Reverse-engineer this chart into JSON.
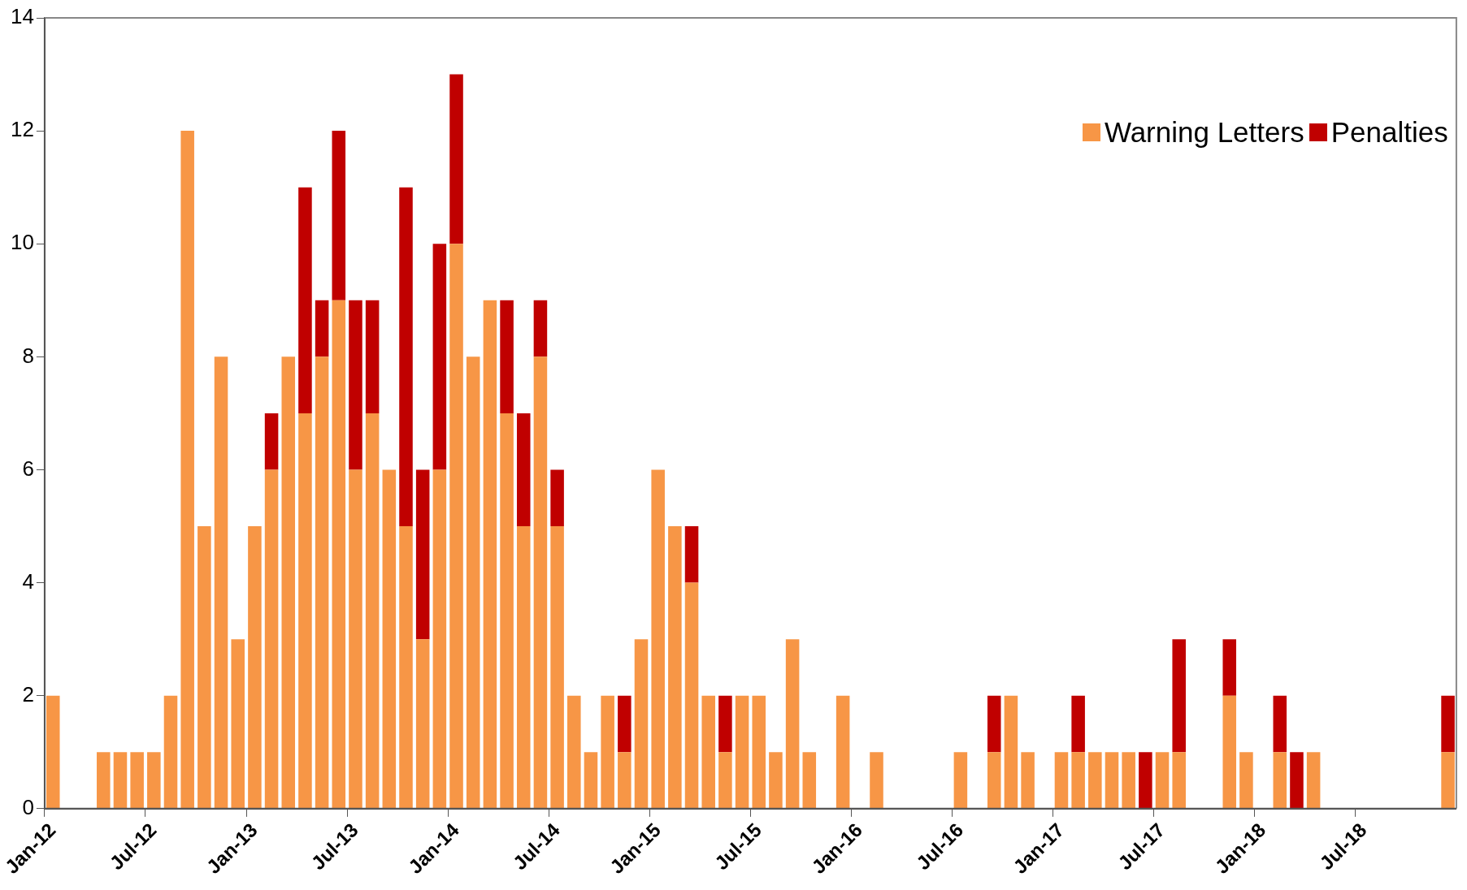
{
  "chart_data": {
    "type": "bar",
    "stacked": true,
    "categories": [
      "Jan-12",
      null,
      null,
      null,
      null,
      null,
      "Jul-12",
      null,
      null,
      null,
      null,
      null,
      "Jan-13",
      null,
      null,
      null,
      null,
      null,
      "Jul-13",
      null,
      null,
      null,
      null,
      null,
      "Jan-14",
      null,
      null,
      null,
      null,
      null,
      "Jul-14",
      null,
      null,
      null,
      null,
      null,
      "Jan-15",
      null,
      null,
      null,
      null,
      null,
      "Jul-15",
      null,
      null,
      null,
      null,
      null,
      "Jan-16",
      null,
      null,
      null,
      null,
      null,
      "Jul-16",
      null,
      null,
      null,
      null,
      null,
      "Jan-17",
      null,
      null,
      null,
      null,
      null,
      "Jul-17",
      null,
      null,
      null,
      null,
      null,
      "Jan-18",
      null,
      null,
      null,
      null,
      null,
      "Jul-18",
      null,
      null,
      null,
      null,
      null
    ],
    "series": [
      {
        "name": "Warning Letters",
        "color": "#f79646",
        "values": [
          2,
          0,
          0,
          1,
          1,
          1,
          1,
          2,
          12,
          5,
          8,
          3,
          5,
          6,
          8,
          7,
          8,
          9,
          6,
          7,
          6,
          5,
          3,
          6,
          10,
          8,
          9,
          7,
          5,
          8,
          5,
          2,
          1,
          2,
          1,
          3,
          6,
          5,
          4,
          2,
          1,
          2,
          2,
          1,
          3,
          1,
          0,
          2,
          0,
          1,
          0,
          0,
          0,
          0,
          1,
          0,
          1,
          2,
          1,
          0,
          1,
          1,
          1,
          1,
          1,
          0,
          1,
          1,
          0,
          0,
          2,
          1,
          0,
          1,
          0,
          1,
          0,
          0,
          0,
          0,
          0,
          0,
          0,
          1
        ]
      },
      {
        "name": "Penalties",
        "color": "#c00000",
        "values": [
          0,
          0,
          0,
          0,
          0,
          0,
          0,
          0,
          0,
          0,
          0,
          0,
          0,
          1,
          0,
          4,
          1,
          3,
          3,
          2,
          0,
          6,
          3,
          4,
          3,
          0,
          0,
          2,
          2,
          1,
          1,
          0,
          0,
          0,
          1,
          0,
          0,
          0,
          1,
          0,
          1,
          0,
          0,
          0,
          0,
          0,
          0,
          0,
          0,
          0,
          0,
          0,
          0,
          0,
          0,
          0,
          1,
          0,
          0,
          0,
          0,
          1,
          0,
          0,
          0,
          1,
          0,
          2,
          0,
          0,
          1,
          0,
          0,
          1,
          1,
          0,
          0,
          0,
          0,
          0,
          0,
          0,
          0,
          1
        ]
      }
    ],
    "ylim": [
      0,
      14
    ],
    "yticks": [
      0,
      2,
      4,
      6,
      8,
      10,
      12,
      14
    ],
    "grid": false,
    "legend": "top right"
  }
}
